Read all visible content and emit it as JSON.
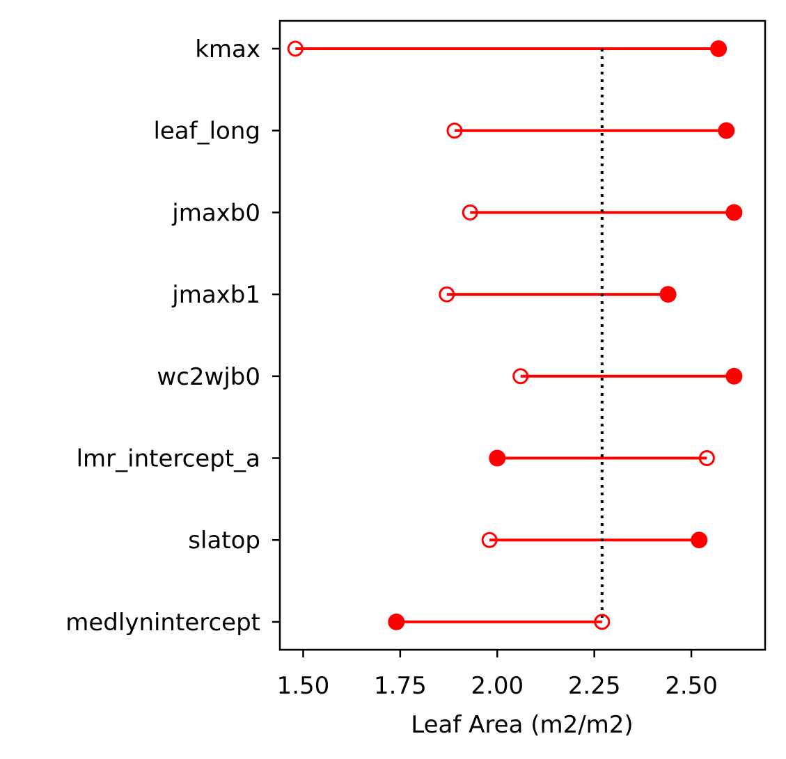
{
  "chart_data": {
    "type": "dumbbell",
    "xlabel": "Leaf Area (m2/m2)",
    "ylabel": "",
    "title": "",
    "xlim": [
      1.44,
      2.69
    ],
    "x_ticks": [
      "1.50",
      "1.75",
      "2.00",
      "2.25",
      "2.50"
    ],
    "categories": [
      "kmax",
      "leaf_long",
      "jmaxb0",
      "jmaxb1",
      "wc2wjb0",
      "lmr_intercept_a",
      "slatop",
      "medlynintercept"
    ],
    "open_marker_values": [
      1.48,
      1.89,
      1.93,
      1.87,
      2.06,
      2.54,
      1.98,
      2.27
    ],
    "filled_marker_values": [
      2.57,
      2.59,
      2.61,
      2.44,
      2.61,
      2.0,
      2.52,
      1.74
    ],
    "reference_line_x": 2.27,
    "grid": false,
    "colors": {
      "series": "#ff0000",
      "reference_line": "#000000"
    }
  }
}
